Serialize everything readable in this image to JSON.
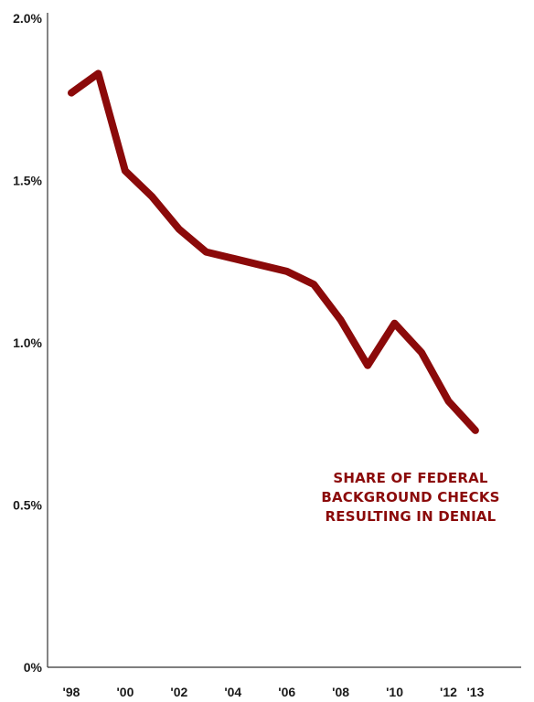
{
  "chart_data": {
    "type": "line",
    "title": "",
    "xlabel": "",
    "ylabel": "",
    "annotation_lines": [
      "SHARE OF FEDERAL",
      "BACKGROUND CHECKS",
      "RESULTING IN DENIAL"
    ],
    "x": [
      1998,
      1999,
      2000,
      2001,
      2002,
      2003,
      2004,
      2005,
      2006,
      2007,
      2008,
      2009,
      2010,
      2011,
      2012,
      2013
    ],
    "x_tick_values": [
      1998,
      2000,
      2002,
      2004,
      2006,
      2008,
      2010,
      2012,
      2013
    ],
    "x_tick_labels": [
      "'98",
      "'00",
      "'02",
      "'04",
      "'06",
      "'08",
      "'10",
      "'12",
      "'13"
    ],
    "xlim": [
      1998,
      2014.7
    ],
    "series": [
      {
        "color": "#8b0a0a",
        "values": [
          1.77,
          1.83,
          1.53,
          1.45,
          1.35,
          1.28,
          1.26,
          1.24,
          1.22,
          1.18,
          1.07,
          0.93,
          1.06,
          0.97,
          0.82,
          0.73
        ]
      }
    ],
    "y_tick_values": [
      0,
      0.5,
      1.0,
      1.5,
      2.0
    ],
    "y_tick_labels": [
      "0%",
      "0.5%",
      "1.0%",
      "1.5%",
      "2.0%"
    ],
    "ylim": [
      0,
      2.0
    ],
    "grid": false,
    "line_color": "#8b0a0a",
    "axis_color": "#333333"
  }
}
